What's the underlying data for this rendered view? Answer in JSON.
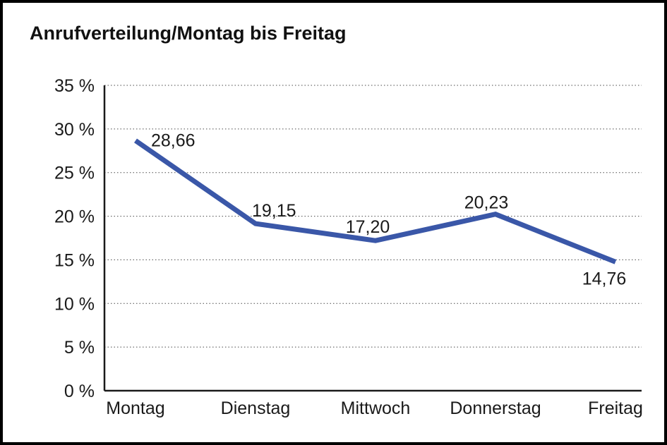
{
  "chart_data": {
    "type": "line",
    "title": "Anrufverteilung/Montag bis Freitag",
    "categories": [
      "Montag",
      "Dienstag",
      "Mittwoch",
      "Donnerstag",
      "Freitag"
    ],
    "values": [
      28.66,
      19.15,
      17.2,
      20.23,
      14.76
    ],
    "value_labels": [
      "28,66",
      "19,15",
      "17,20",
      "20,23",
      "14,76"
    ],
    "y_ticks": [
      "35 %",
      "30 %",
      "25 %",
      "20 %",
      "15 %",
      "10 %",
      "5 %",
      "0 %"
    ],
    "ylim": [
      0,
      35
    ],
    "y_tick_step": 5,
    "xlabel": "",
    "ylabel": "",
    "grid": "horizontal-dotted",
    "legend_position": "none",
    "line_color": "#3A57A8",
    "axis_color": "#1a1a1a",
    "background_color": "#ffffff",
    "border_color": "#000000"
  }
}
